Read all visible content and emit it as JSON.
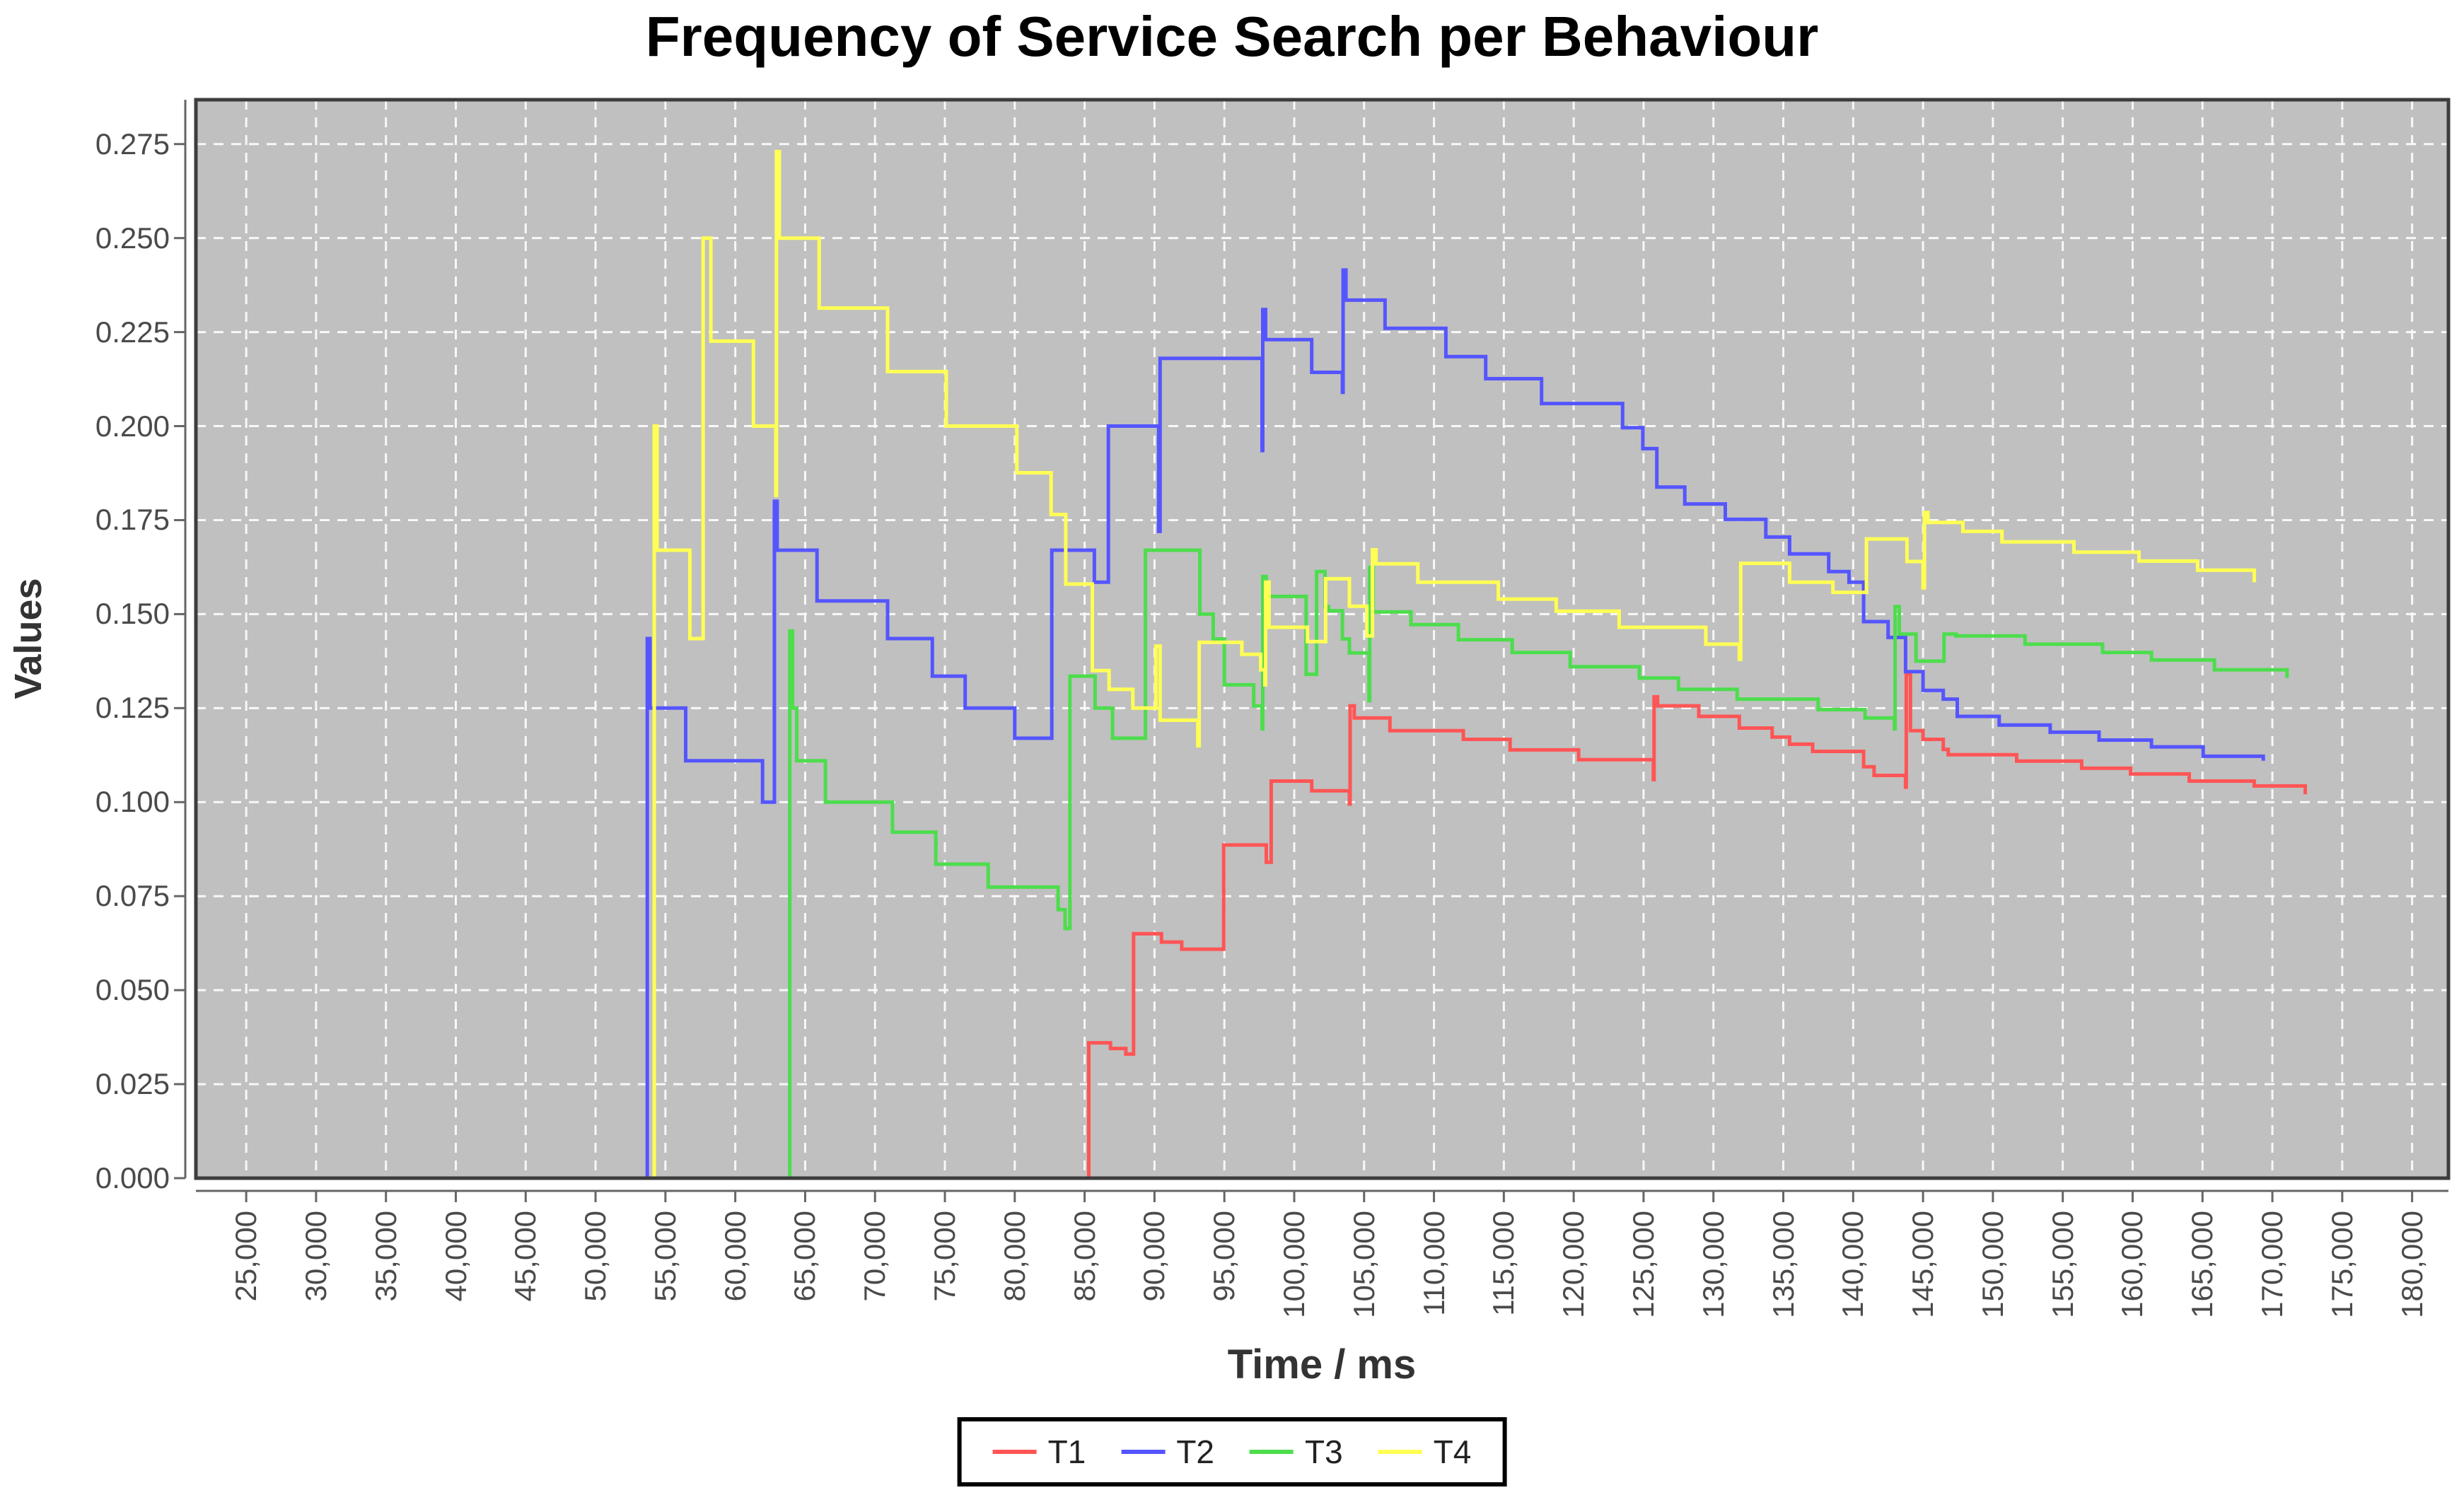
{
  "chart": {
    "title": "Frequency of Service Search per Behaviour",
    "x_axis_label": "Time / ms",
    "y_axis_label": "Values"
  },
  "chart_data": {
    "type": "line",
    "step": true,
    "title": "Frequency of Service Search per Behaviour",
    "xlabel": "Time / ms",
    "ylabel": "Values",
    "xlim": [
      21400,
      182600
    ],
    "ylim": [
      0,
      0.2868
    ],
    "grid": "white dashed on gray plot background",
    "legend_position": "bottom",
    "plot_background": "#c0c0c0",
    "x_ticks": {
      "values": [
        25000,
        30000,
        35000,
        40000,
        45000,
        50000,
        55000,
        60000,
        65000,
        70000,
        75000,
        80000,
        85000,
        90000,
        95000,
        100000,
        105000,
        110000,
        115000,
        120000,
        125000,
        130000,
        135000,
        140000,
        145000,
        150000,
        155000,
        160000,
        165000,
        170000,
        175000,
        180000
      ],
      "labels": [
        "25,000",
        "30,000",
        "35,000",
        "40,000",
        "45,000",
        "50,000",
        "55,000",
        "60,000",
        "65,000",
        "70,000",
        "75,000",
        "80,000",
        "85,000",
        "90,000",
        "95,000",
        "100,000",
        "105,000",
        "110,000",
        "115,000",
        "120,000",
        "125,000",
        "130,000",
        "135,000",
        "140,000",
        "145,000",
        "150,000",
        "155,000",
        "160,000",
        "165,000",
        "170,000",
        "175,000",
        "180,000"
      ]
    },
    "y_ticks": {
      "values": [
        0,
        0.025,
        0.05,
        0.075,
        0.1,
        0.125,
        0.15,
        0.175,
        0.2,
        0.225,
        0.25,
        0.275
      ],
      "labels": [
        "0.000",
        "0.025",
        "0.050",
        "0.075",
        "0.100",
        "0.125",
        "0.150",
        "0.175",
        "0.200",
        "0.225",
        "0.250",
        "0.275"
      ]
    },
    "series": [
      {
        "name": "T1",
        "color": "#ff5555",
        "points": [
          [
            85300,
            0
          ],
          [
            85300,
            0.036
          ],
          [
            86850,
            0.0345
          ],
          [
            87950,
            0.033
          ],
          [
            88500,
            0.065
          ],
          [
            90500,
            0.0628
          ],
          [
            91950,
            0.0609
          ],
          [
            94950,
            0.0886
          ],
          [
            98000,
            0.084
          ],
          [
            98350,
            0.1056
          ],
          [
            101250,
            0.103
          ],
          [
            103950,
            0.0995
          ],
          [
            104000,
            0.1256
          ],
          [
            104300,
            0.1224
          ],
          [
            106850,
            0.119
          ],
          [
            112100,
            0.1167
          ],
          [
            115450,
            0.1139
          ],
          [
            120350,
            0.1113
          ],
          [
            125700,
            0.106
          ],
          [
            125750,
            0.128
          ],
          [
            126000,
            0.1256
          ],
          [
            128950,
            0.1228
          ],
          [
            131850,
            0.1197
          ],
          [
            134200,
            0.1173
          ],
          [
            135450,
            0.1154
          ],
          [
            137100,
            0.1135
          ],
          [
            140750,
            0.1094
          ],
          [
            141500,
            0.1071
          ],
          [
            143750,
            0.104
          ],
          [
            143800,
            0.134
          ],
          [
            144100,
            0.119
          ],
          [
            145000,
            0.1167
          ],
          [
            146450,
            0.114
          ],
          [
            146800,
            0.1126
          ],
          [
            151700,
            0.1109
          ],
          [
            156350,
            0.109
          ],
          [
            159850,
            0.1075
          ],
          [
            164050,
            0.1056
          ],
          [
            168700,
            0.1043
          ],
          [
            172350,
            0.1021
          ]
        ]
      },
      {
        "name": "T2",
        "color": "#5555ff",
        "points": [
          [
            53700,
            0
          ],
          [
            53700,
            0.1435
          ],
          [
            53900,
            0.125
          ],
          [
            56450,
            0.111
          ],
          [
            61950,
            0.1
          ],
          [
            62800,
            0.18
          ],
          [
            63000,
            0.167
          ],
          [
            65850,
            0.1535
          ],
          [
            70900,
            0.1435
          ],
          [
            74100,
            0.1335
          ],
          [
            76450,
            0.125
          ],
          [
            80000,
            0.117
          ],
          [
            82650,
            0.167
          ],
          [
            85700,
            0.1585
          ],
          [
            86700,
            0.2
          ],
          [
            90300,
            0.172
          ],
          [
            90400,
            0.218
          ],
          [
            97700,
            0.1935
          ],
          [
            97750,
            0.231
          ],
          [
            97950,
            0.223
          ],
          [
            101250,
            0.2143
          ],
          [
            103450,
            0.209
          ],
          [
            103500,
            0.2415
          ],
          [
            103700,
            0.2335
          ],
          [
            106500,
            0.226
          ],
          [
            110850,
            0.2185
          ],
          [
            113700,
            0.2126
          ],
          [
            117700,
            0.206
          ],
          [
            123500,
            0.1996
          ],
          [
            124950,
            0.194
          ],
          [
            125950,
            0.1838
          ],
          [
            127950,
            0.1793
          ],
          [
            130850,
            0.1752
          ],
          [
            133750,
            0.1705
          ],
          [
            135450,
            0.166
          ],
          [
            138250,
            0.1613
          ],
          [
            139700,
            0.1585
          ],
          [
            140750,
            0.148
          ],
          [
            142500,
            0.1438
          ],
          [
            143750,
            0.1347
          ],
          [
            145000,
            0.1297
          ],
          [
            146450,
            0.1274
          ],
          [
            147450,
            0.1228
          ],
          [
            150450,
            0.1205
          ],
          [
            154100,
            0.1186
          ],
          [
            157600,
            0.1165
          ],
          [
            161350,
            0.1147
          ],
          [
            165050,
            0.1122
          ],
          [
            169350,
            0.111
          ]
        ]
      },
      {
        "name": "T3",
        "color": "#4ddd4d",
        "points": [
          [
            63900,
            0
          ],
          [
            63900,
            0.1455
          ],
          [
            64100,
            0.125
          ],
          [
            64400,
            0.111
          ],
          [
            66450,
            0.1
          ],
          [
            71250,
            0.092
          ],
          [
            74350,
            0.0835
          ],
          [
            78100,
            0.0774
          ],
          [
            83100,
            0.0714
          ],
          [
            83600,
            0.0664
          ],
          [
            83950,
            0.1335
          ],
          [
            85750,
            0.125
          ],
          [
            87000,
            0.117
          ],
          [
            89350,
            0.167
          ],
          [
            93250,
            0.15
          ],
          [
            94200,
            0.1434
          ],
          [
            95000,
            0.1312
          ],
          [
            97100,
            0.1256
          ],
          [
            97700,
            0.1195
          ],
          [
            97750,
            0.16
          ],
          [
            98000,
            0.1547
          ],
          [
            100850,
            0.134
          ],
          [
            101600,
            0.1613
          ],
          [
            102200,
            0.152
          ],
          [
            102450,
            0.1509
          ],
          [
            103450,
            0.1434
          ],
          [
            103950,
            0.1397
          ],
          [
            105350,
            0.127
          ],
          [
            105400,
            0.1624
          ],
          [
            105650,
            0.1506
          ],
          [
            108350,
            0.1472
          ],
          [
            111750,
            0.1432
          ],
          [
            115600,
            0.1398
          ],
          [
            119750,
            0.136
          ],
          [
            124700,
            0.133
          ],
          [
            127500,
            0.13
          ],
          [
            131700,
            0.1274
          ],
          [
            137500,
            0.1246
          ],
          [
            140850,
            0.1224
          ],
          [
            142950,
            0.1195
          ],
          [
            143000,
            0.152
          ],
          [
            143300,
            0.1447
          ],
          [
            144500,
            0.1375
          ],
          [
            146500,
            0.1447
          ],
          [
            147350,
            0.1442
          ],
          [
            152300,
            0.142
          ],
          [
            157850,
            0.1398
          ],
          [
            161350,
            0.1378
          ],
          [
            165850,
            0.1352
          ],
          [
            171050,
            0.133
          ]
        ]
      },
      {
        "name": "T4",
        "color": "#ffff55",
        "points": [
          [
            54200,
            0
          ],
          [
            54200,
            0.2
          ],
          [
            54400,
            0.167
          ],
          [
            56750,
            0.1435
          ],
          [
            57700,
            0.25
          ],
          [
            58250,
            0.2226
          ],
          [
            61300,
            0.2
          ],
          [
            62900,
            0.1816
          ],
          [
            62950,
            0.273
          ],
          [
            63150,
            0.25
          ],
          [
            66000,
            0.2314
          ],
          [
            70900,
            0.2145
          ],
          [
            75100,
            0.2
          ],
          [
            80150,
            0.1876
          ],
          [
            82600,
            0.1765
          ],
          [
            83650,
            0.158
          ],
          [
            85550,
            0.135
          ],
          [
            86750,
            0.13
          ],
          [
            88450,
            0.125
          ],
          [
            90100,
            0.1415
          ],
          [
            90400,
            0.1218
          ],
          [
            93100,
            0.115
          ],
          [
            93200,
            0.1425
          ],
          [
            96250,
            0.1393
          ],
          [
            97600,
            0.1352
          ],
          [
            97900,
            0.1312
          ],
          [
            97950,
            0.1585
          ],
          [
            98200,
            0.1465
          ],
          [
            100950,
            0.1427
          ],
          [
            102250,
            0.1594
          ],
          [
            103950,
            0.1521
          ],
          [
            105200,
            0.1442
          ],
          [
            105600,
            0.1671
          ],
          [
            105850,
            0.1634
          ],
          [
            108850,
            0.1585
          ],
          [
            114600,
            0.154
          ],
          [
            118750,
            0.1508
          ],
          [
            123250,
            0.1465
          ],
          [
            129450,
            0.142
          ],
          [
            131850,
            0.138
          ],
          [
            131950,
            0.1635
          ],
          [
            135450,
            0.1585
          ],
          [
            138550,
            0.1558
          ],
          [
            140950,
            0.17
          ],
          [
            143850,
            0.164
          ],
          [
            145000,
            0.157
          ],
          [
            145100,
            0.177
          ],
          [
            145350,
            0.1744
          ],
          [
            147850,
            0.172
          ],
          [
            150650,
            0.1692
          ],
          [
            155800,
            0.1665
          ],
          [
            160450,
            0.1641
          ],
          [
            164650,
            0.1617
          ],
          [
            168700,
            0.1585
          ]
        ]
      }
    ]
  }
}
